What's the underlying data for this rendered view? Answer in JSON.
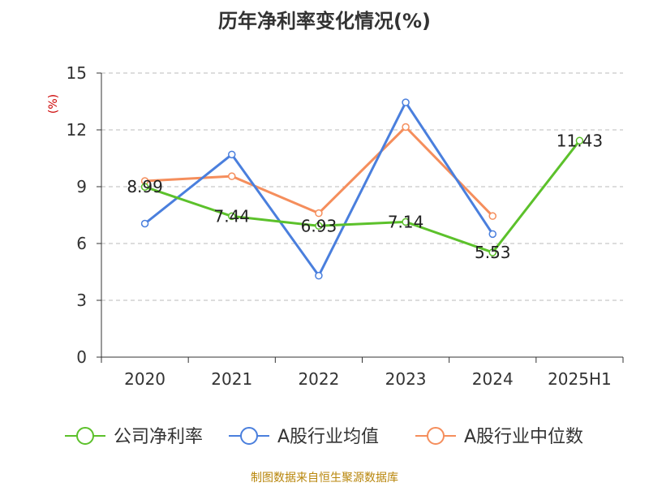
{
  "chart_data": {
    "type": "line",
    "title": "历年净利率变化情况(%)",
    "ylabel": "(%)",
    "xlabel": "",
    "categories": [
      "2020",
      "2021",
      "2022",
      "2023",
      "2024",
      "2025H1"
    ],
    "ylim": [
      0,
      15
    ],
    "yticks": [
      0,
      3,
      6,
      9,
      12,
      15
    ],
    "grid": true,
    "legend_position": "bottom",
    "series": [
      {
        "name": "公司净利率",
        "color": "#5cc12b",
        "values": [
          8.99,
          7.44,
          6.93,
          7.14,
          5.53,
          11.43
        ],
        "labels": [
          "8.99",
          "7.44",
          "6.93",
          "7.14",
          "5.53",
          "11.43"
        ],
        "show_labels": true
      },
      {
        "name": "A股行业均值",
        "color": "#4a7fdd",
        "values": [
          7.05,
          10.7,
          4.3,
          13.45,
          6.5,
          null
        ],
        "show_labels": false
      },
      {
        "name": "A股行业中位数",
        "color": "#f58e5c",
        "values": [
          9.3,
          9.55,
          7.6,
          12.15,
          7.45,
          null
        ],
        "show_labels": false
      }
    ]
  },
  "footer": {
    "source": "制图数据来自恒生聚源数据库"
  }
}
